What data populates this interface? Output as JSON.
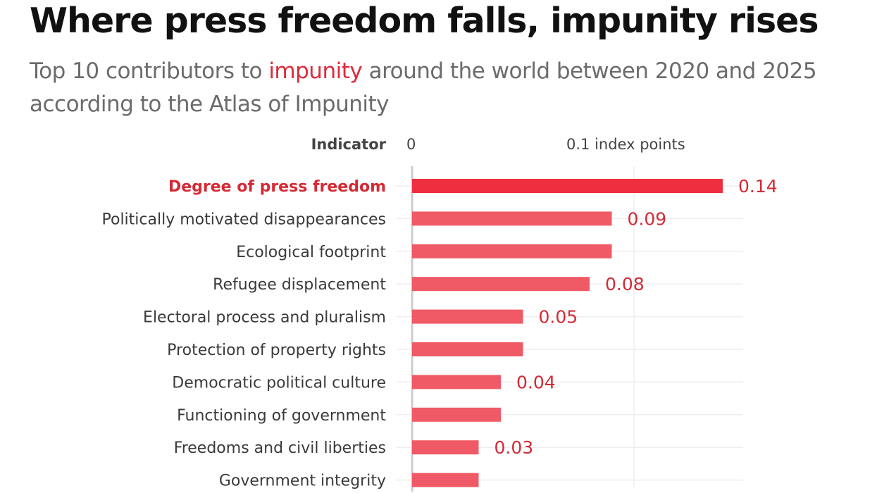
{
  "header": {
    "title": "Where press freedom falls, impunity rises",
    "subtitle_before": "Top 10 contributors to ",
    "subtitle_highlight": "impunity",
    "subtitle_after": " around the world between 2020 and 2025 according to the Atlas of Impunity"
  },
  "colors": {
    "highlight_bar": "#ee2f40",
    "bar": "#f05a66",
    "highlight_text": "#d42a36",
    "axis": "#cccccc",
    "grid": "#eeeeee"
  },
  "chart_data": {
    "type": "bar",
    "orientation": "horizontal",
    "category_header": "Indicator",
    "categories": [
      "Degree of press freedom",
      "Politically motivated disappearances",
      "Ecological footprint",
      "Refugee displacement",
      "Electoral process and pluralism",
      "Protection of property rights",
      "Democratic political culture",
      "Functioning of government",
      "Freedoms and civil liberties",
      "Government integrity"
    ],
    "values": [
      0.14,
      0.09,
      0.09,
      0.08,
      0.05,
      0.05,
      0.04,
      0.04,
      0.03,
      0.03
    ],
    "value_labels": [
      "0.14",
      "0.09",
      "",
      "0.08",
      "0.05",
      "",
      "0.04",
      "",
      "0.03",
      ""
    ],
    "highlight_index": 0,
    "x_ticks": [
      {
        "value": 0,
        "label": "0"
      },
      {
        "value": 0.1,
        "label": "0.1 index points"
      }
    ],
    "xlim": [
      0,
      0.15
    ],
    "grid": true
  }
}
